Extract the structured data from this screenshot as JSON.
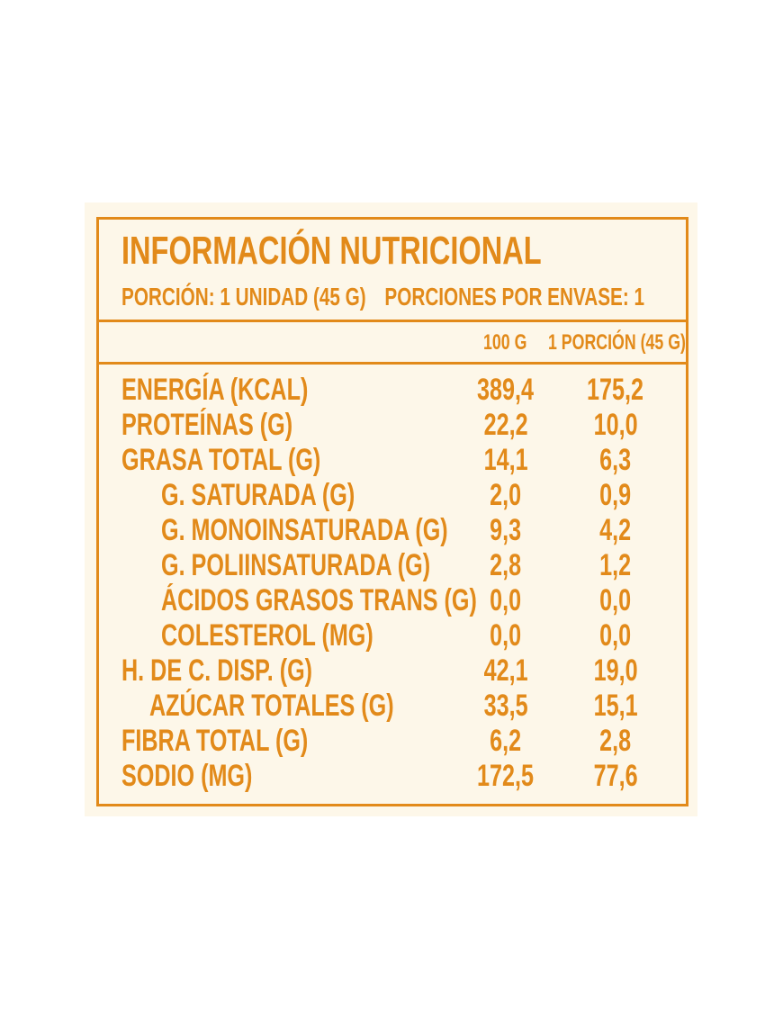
{
  "title": "INFORMACIÓN NUTRICIONAL",
  "serving": {
    "portion": "PORCIÓN: 1 UNIDAD (45 G)",
    "per_container": "PORCIONES POR ENVASE: 1"
  },
  "columns": {
    "per100": "100 G",
    "per_portion": "1 PORCIÓN (45 G)"
  },
  "colors": {
    "accent": "#e28a1a",
    "background": "#fdf7e9"
  },
  "rows": [
    {
      "name": "ENERGÍA (KCAL)",
      "per100": "389,4",
      "per_portion": "175,2"
    },
    {
      "name": "PROTEÍNAS (G)",
      "per100": "22,2",
      "per_portion": "10,0"
    },
    {
      "name": "GRASA TOTAL (G)",
      "per100": "14,1",
      "per_portion": "6,3"
    },
    {
      "name": "G. SATURADA (G)",
      "per100": "2,0",
      "per_portion": "0,9"
    },
    {
      "name": "G. MONOINSATURADA (G)",
      "per100": "9,3",
      "per_portion": "4,2"
    },
    {
      "name": "G. POLIINSATURADA (G)",
      "per100": "2,8",
      "per_portion": "1,2"
    },
    {
      "name": "ÁCIDOS GRASOS TRANS (G)",
      "per100": "0,0",
      "per_portion": "0,0"
    },
    {
      "name": "COLESTEROL (MG)",
      "per100": "0,0",
      "per_portion": "0,0"
    },
    {
      "name": "H. DE C. DISP. (G)",
      "per100": "42,1",
      "per_portion": "19,0"
    },
    {
      "name": "AZÚCAR TOTALES (G)",
      "per100": "33,5",
      "per_portion": "15,1"
    },
    {
      "name": "FIBRA TOTAL (G)",
      "per100": "6,2",
      "per_portion": "2,8"
    },
    {
      "name": "SODIO (MG)",
      "per100": "172,5",
      "per_portion": "77,6"
    }
  ]
}
